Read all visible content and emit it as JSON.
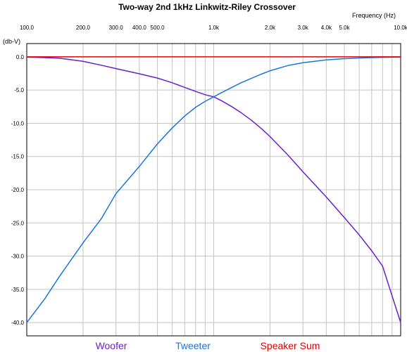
{
  "chart_data": {
    "type": "line",
    "title": "Two-way 2nd 1kHz Linkwitz-Riley Crossover",
    "xlabel": "Frequency  (Hz)",
    "ylabel": "(db-V)",
    "x_scale": "log",
    "xlim": [
      100,
      10000
    ],
    "ylim": [
      -42,
      2
    ],
    "grid": true,
    "legend_position": "bottom",
    "x_ticks": [
      {
        "value": 100,
        "label": "100.0"
      },
      {
        "value": 200,
        "label": "200.0"
      },
      {
        "value": 300,
        "label": "300.0"
      },
      {
        "value": 400,
        "label": "400.0"
      },
      {
        "value": 500,
        "label": "500.0"
      },
      {
        "value": 1000,
        "label": "1.0k"
      },
      {
        "value": 2000,
        "label": "2.0k"
      },
      {
        "value": 3000,
        "label": "3.0k"
      },
      {
        "value": 4000,
        "label": "4.0k"
      },
      {
        "value": 5000,
        "label": "5.0k"
      },
      {
        "value": 10000,
        "label": "10.0k"
      }
    ],
    "y_ticks": [
      {
        "value": 0,
        "label": "0.0"
      },
      {
        "value": -5,
        "label": "-5.0"
      },
      {
        "value": -10,
        "label": "-10.0"
      },
      {
        "value": -15,
        "label": "-15.0"
      },
      {
        "value": -20,
        "label": "-20.0"
      },
      {
        "value": -25,
        "label": "-25.0"
      },
      {
        "value": -30,
        "label": "-30.0"
      },
      {
        "value": -35,
        "label": "-35.0"
      },
      {
        "value": -40,
        "label": "-40.0"
      }
    ],
    "x": [
      100,
      125,
      150,
      200,
      250,
      300,
      400,
      500,
      600,
      700,
      800,
      900,
      1000,
      1100,
      1250,
      1400,
      1600,
      1800,
      2000,
      2500,
      3000,
      4000,
      5000,
      6000,
      7000,
      8000,
      10000
    ],
    "series": [
      {
        "name": "Woofer",
        "color": "#6a1fd0",
        "values": [
          -0.04,
          -0.11,
          -0.21,
          -0.67,
          -1.26,
          -1.77,
          -2.55,
          -3.2,
          -3.9,
          -4.6,
          -5.2,
          -5.7,
          -6.02,
          -6.6,
          -7.5,
          -8.4,
          -9.6,
          -10.8,
          -12.0,
          -14.8,
          -17.3,
          -21.1,
          -24.2,
          -26.8,
          -29.2,
          -31.5,
          -40.0
        ]
      },
      {
        "name": "Tweeter",
        "color": "#1a74e0",
        "values": [
          -40.0,
          -36.4,
          -33.0,
          -28.0,
          -24.4,
          -20.6,
          -16.5,
          -13.1,
          -10.7,
          -8.9,
          -7.6,
          -6.7,
          -6.02,
          -5.4,
          -4.6,
          -3.9,
          -3.2,
          -2.6,
          -2.1,
          -1.3,
          -0.88,
          -0.46,
          -0.27,
          -0.17,
          -0.11,
          -0.07,
          -0.04
        ]
      },
      {
        "name": "Speaker Sum",
        "color": "#e00000",
        "values": [
          0,
          0,
          0,
          0,
          0,
          0,
          0,
          0,
          0,
          0,
          0,
          0,
          0,
          0,
          0,
          0,
          0,
          0,
          0,
          0,
          0,
          0,
          0,
          0,
          0,
          0,
          0
        ]
      }
    ]
  }
}
